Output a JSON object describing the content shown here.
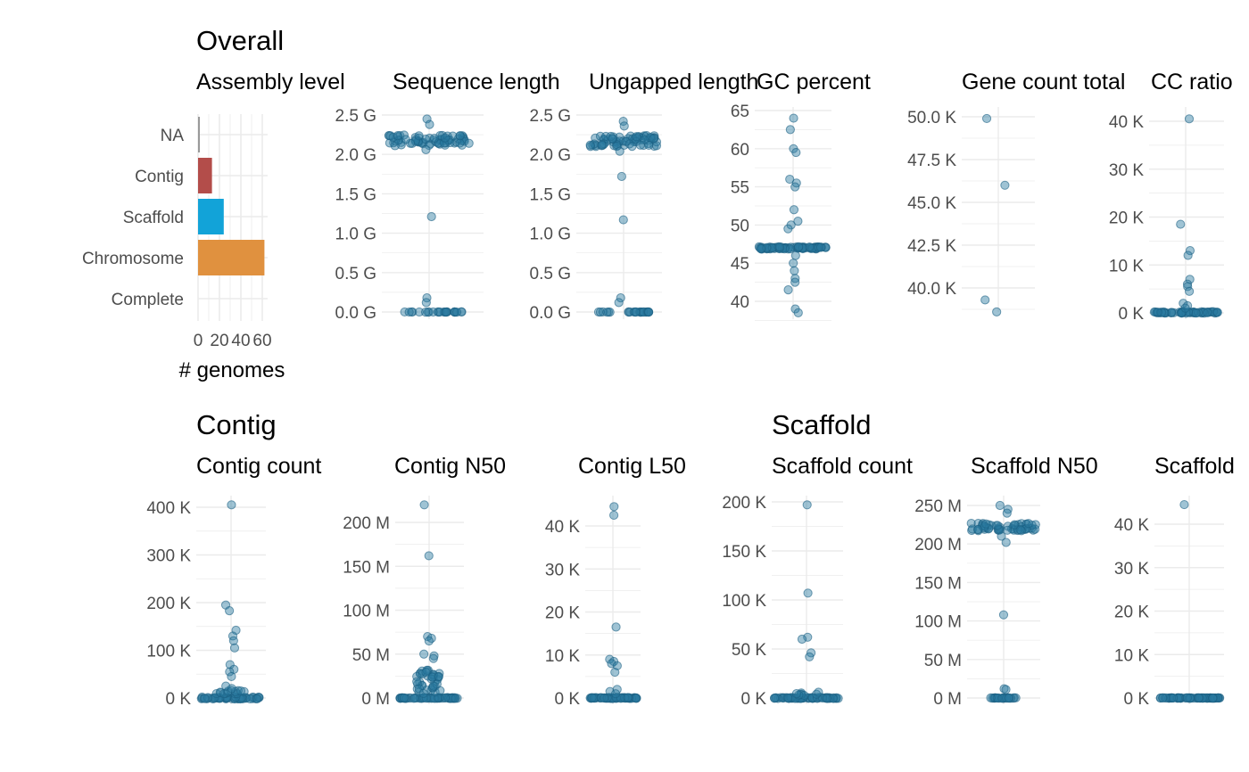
{
  "sections": [
    {
      "title": "Overall"
    },
    {
      "title": "Contig"
    },
    {
      "title": "Scaffold"
    }
  ],
  "colors": {
    "point": "#2a7ba0",
    "point_edge": "#1a5f82",
    "grid": "#ebebeb",
    "bar_na": "#999999",
    "bar_contig": "#b34d4a",
    "bar_scaffold": "#12a3d8",
    "bar_chromosome": "#e0913f"
  },
  "chart_data": [
    {
      "type": "bar",
      "orientation": "horizontal",
      "title": "Assembly level",
      "xlabel": "# genomes",
      "categories": [
        "NA",
        "Contig",
        "Scaffold",
        "Chromosome",
        "Complete"
      ],
      "values": [
        1,
        13,
        24,
        62,
        0
      ],
      "bar_colors": [
        "#999999",
        "#b34d4a",
        "#12a3d8",
        "#e0913f",
        "#999999"
      ],
      "xticks": [
        0,
        20,
        40,
        60
      ],
      "xtick_labels": [
        "0",
        "20",
        "40",
        "60"
      ],
      "xlim": [
        0,
        65
      ]
    },
    {
      "type": "scatter",
      "title": "Sequence length",
      "ylim": [
        0,
        2.5
      ],
      "yticks": [
        0,
        0.5,
        1.0,
        1.5,
        2.0,
        2.5
      ],
      "ytick_labels": [
        "0.0 G",
        "0.5 G",
        "1.0 G",
        "1.5 G",
        "2.0 G",
        "2.5 G"
      ],
      "groups": [
        {
          "y": 2.18,
          "n": 70,
          "spread": 0.07,
          "width": 0.85
        },
        {
          "y": 0.0,
          "n": 25,
          "spread": 0.002,
          "width": 0.7
        }
      ],
      "extra": [
        2.45,
        2.38,
        2.06,
        1.21,
        0.18,
        0.12
      ]
    },
    {
      "type": "scatter",
      "title": "Ungapped length",
      "ylim": [
        0,
        2.5
      ],
      "yticks": [
        0,
        0.5,
        1.0,
        1.5,
        2.0,
        2.5
      ],
      "ytick_labels": [
        "0.0 G",
        "0.5 G",
        "1.0 G",
        "1.5 G",
        "2.0 G",
        "2.5 G"
      ],
      "groups": [
        {
          "y": 2.17,
          "n": 70,
          "spread": 0.07,
          "width": 0.85
        },
        {
          "y": 0.0,
          "n": 25,
          "spread": 0.002,
          "width": 0.7
        }
      ],
      "extra": [
        2.42,
        2.36,
        2.04,
        1.72,
        1.17,
        0.18,
        0.12
      ]
    },
    {
      "type": "scatter",
      "title": "GC percent",
      "ylim": [
        37.5,
        66
      ],
      "yticks": [
        40,
        45,
        50,
        55,
        60,
        65
      ],
      "ytick_labels": [
        "40",
        "45",
        "50",
        "55",
        "60",
        "65"
      ],
      "groups": [
        {
          "y": 47.0,
          "n": 80,
          "spread": 0.15,
          "width": 1.0
        }
      ],
      "extra": [
        64.0,
        62.5,
        60.0,
        59.5,
        56.0,
        55.5,
        55.0,
        52.0,
        50.5,
        50.0,
        49.5,
        46.0,
        45.0,
        44.0,
        43.0,
        42.5,
        41.5,
        39.0,
        38.5
      ]
    },
    {
      "type": "scatter",
      "title": "Gene count total",
      "ylim": [
        38.5,
        50.5
      ],
      "yticks": [
        40,
        42.5,
        45,
        47.5,
        50
      ],
      "ytick_labels": [
        "40.0 K",
        "42.5 K",
        "45.0 K",
        "47.5 K",
        "50.0 K"
      ],
      "groups": [],
      "points": [
        {
          "y": 49.9,
          "dx": -0.35
        },
        {
          "y": 46.0,
          "dx": 0.2
        },
        {
          "y": 39.3,
          "dx": -0.4
        },
        {
          "y": 38.6,
          "dx": -0.05
        }
      ]
    },
    {
      "type": "scatter",
      "title": "CC ratio",
      "ylim": [
        0,
        41
      ],
      "yticks": [
        0,
        10,
        20,
        30,
        40
      ],
      "ytick_labels": [
        "0 K",
        "10 K",
        "20 K",
        "30 K",
        "40 K"
      ],
      "groups": [
        {
          "y": 0.1,
          "n": 60,
          "spread": 0.15,
          "width": 0.95
        }
      ],
      "extra": [
        40.5,
        18.5,
        13.0,
        12.0,
        7.0,
        6.0,
        5.5,
        4.5,
        2.0,
        1.5,
        1.0
      ]
    },
    {
      "type": "scatter",
      "title": "Contig count",
      "ylim": [
        0,
        410
      ],
      "yticks": [
        0,
        100,
        200,
        300,
        400
      ],
      "ytick_labels": [
        "0 K",
        "100 K",
        "200 K",
        "300 K",
        "400 K"
      ],
      "groups": [
        {
          "y": 0,
          "n": 55,
          "spread": 2,
          "width": 0.95
        },
        {
          "y": 12,
          "n": 14,
          "spread": 4,
          "width": 0.5
        }
      ],
      "extra": [
        405,
        195,
        183,
        142,
        130,
        120,
        105,
        70,
        60,
        55,
        45,
        25,
        20
      ]
    },
    {
      "type": "scatter",
      "title": "Contig N50",
      "ylim": [
        0,
        225
      ],
      "yticks": [
        0,
        50,
        100,
        150,
        200
      ],
      "ytick_labels": [
        "0 M",
        "50 M",
        "100 M",
        "150 M",
        "200 M"
      ],
      "groups": [
        {
          "y": 0,
          "n": 60,
          "spread": 0.5,
          "width": 0.95
        },
        {
          "y": 18,
          "n": 40,
          "spread": 14,
          "width": 0.4
        }
      ],
      "extra": [
        220,
        162,
        70,
        68,
        65,
        50,
        48,
        45
      ]
    },
    {
      "type": "scatter",
      "title": "Contig L50",
      "ylim": [
        0,
        45
      ],
      "yticks": [
        0,
        10,
        20,
        30,
        40
      ],
      "ytick_labels": [
        "0 K",
        "10 K",
        "20 K",
        "30 K",
        "40 K"
      ],
      "groups": [
        {
          "y": 0,
          "n": 70,
          "spread": 0.1,
          "width": 1.0
        }
      ],
      "extra": [
        44.5,
        42.5,
        16.5,
        9.0,
        8.5,
        8.0,
        7.5,
        6.0,
        2.0,
        1.5,
        1.0
      ]
    },
    {
      "type": "scatter",
      "title": "Scaffold count",
      "ylim": [
        0,
        202
      ],
      "yticks": [
        0,
        50,
        100,
        150,
        200
      ],
      "ytick_labels": [
        "0 K",
        "50 K",
        "100 K",
        "150 K",
        "200 K"
      ],
      "groups": [
        {
          "y": 0,
          "n": 65,
          "spread": 0.5,
          "width": 1.0
        },
        {
          "y": 4,
          "n": 8,
          "spread": 2,
          "width": 0.4
        }
      ],
      "extra": [
        197,
        107,
        62,
        60,
        46,
        42
      ]
    },
    {
      "type": "scatter",
      "title": "Scaffold N50",
      "ylim": [
        0,
        255
      ],
      "yticks": [
        0,
        50,
        100,
        150,
        200,
        250
      ],
      "ytick_labels": [
        "0 M",
        "50 M",
        "100 M",
        "150 M",
        "200 M",
        "250 M"
      ],
      "groups": [
        {
          "y": 222,
          "n": 55,
          "spread": 5,
          "width": 1.0
        },
        {
          "y": 0,
          "n": 25,
          "spread": 0.3,
          "width": 0.4
        }
      ],
      "extra": [
        250,
        245,
        240,
        210,
        202,
        108,
        12,
        11
      ]
    },
    {
      "type": "scatter",
      "title": "Scaffold",
      "ylim": [
        0,
        45
      ],
      "yticks": [
        0,
        10,
        20,
        30,
        40
      ],
      "ytick_labels": [
        "0 K",
        "10 K",
        "20 K",
        "30 K",
        "40 K"
      ],
      "groups": [
        {
          "y": 0,
          "n": 80,
          "spread": 0.05,
          "width": 1.0
        }
      ],
      "extra": [
        44.5
      ]
    }
  ]
}
